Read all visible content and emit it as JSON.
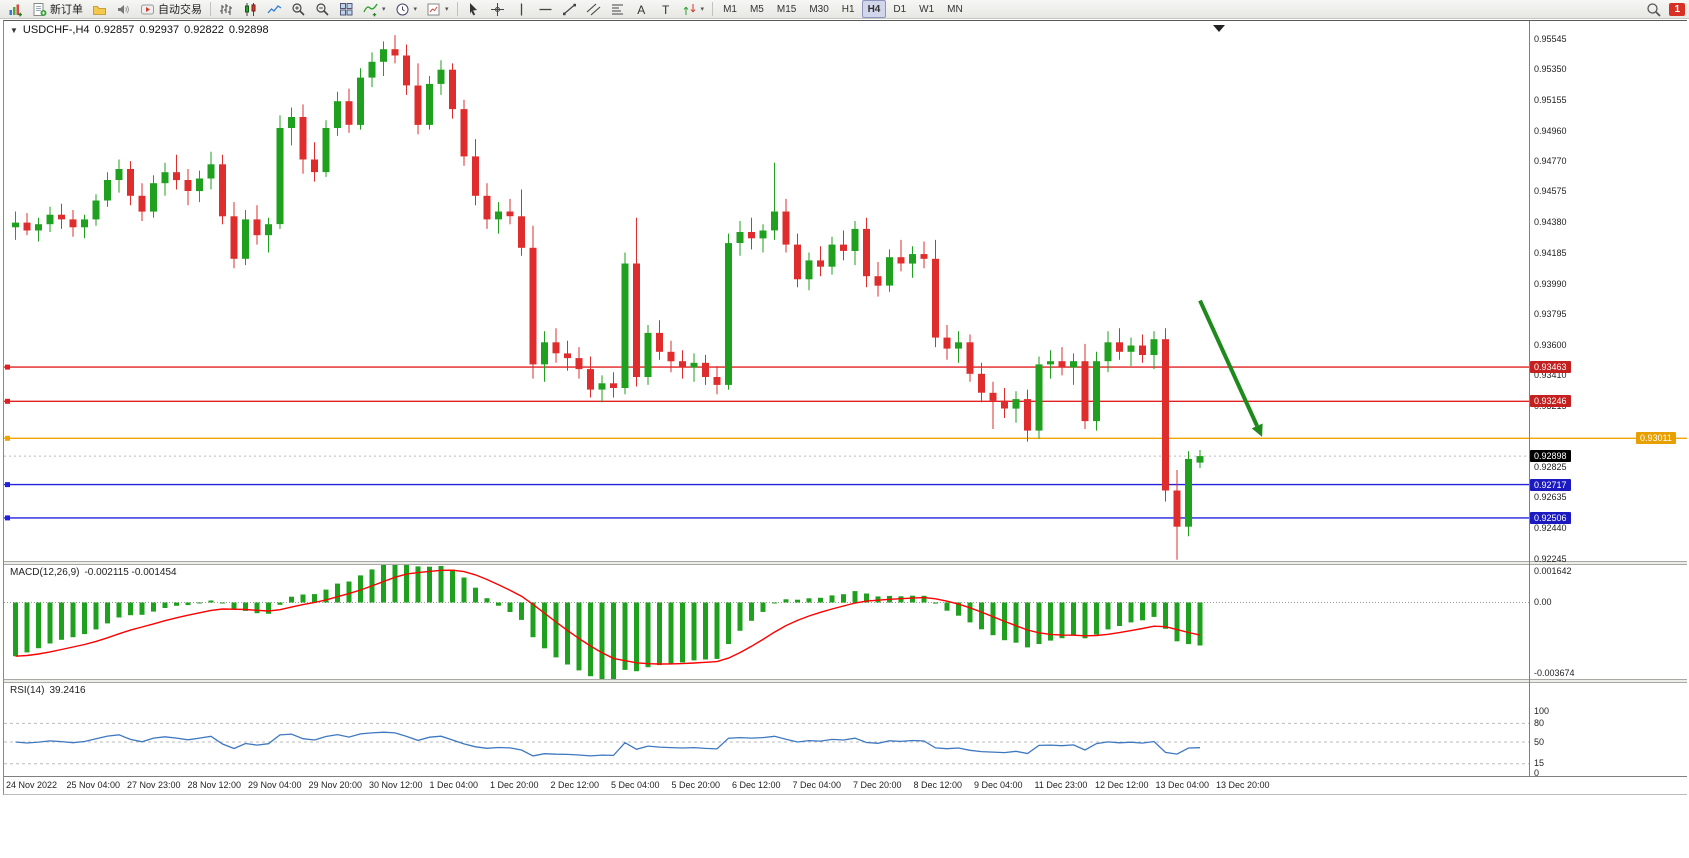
{
  "toolbar": {
    "file_group": [
      {
        "name": "new-chart-button",
        "icon": "chart-plus-icon"
      },
      {
        "name": "new-order-button",
        "icon": "new-order-icon",
        "label": "新订单"
      },
      {
        "name": "profiles-button",
        "icon": "profiles-icon"
      },
      {
        "name": "alerts-button",
        "icon": "alerts-icon"
      },
      {
        "name": "autotrade-button",
        "icon": "autotrade-icon",
        "label": "自动交易"
      }
    ],
    "chart_group": [
      {
        "name": "bar-chart-button",
        "icon": "bar-chart-icon"
      },
      {
        "name": "candlestick-button",
        "icon": "candle-chart-icon"
      },
      {
        "name": "line-chart-button",
        "icon": "line-chart-icon"
      },
      {
        "name": "zoom-in-button",
        "icon": "zoom-in-icon"
      },
      {
        "name": "zoom-out-button",
        "icon": "zoom-out-icon"
      },
      {
        "name": "tile-windows-button",
        "icon": "tile-windows-icon"
      },
      {
        "name": "indicators-button",
        "icon": "indicators-icon",
        "dropdown": true
      },
      {
        "name": "periods-button",
        "icon": "clock-icon",
        "dropdown": true
      },
      {
        "name": "templates-button",
        "icon": "templates-icon",
        "dropdown": true
      }
    ],
    "draw_group": [
      {
        "name": "cursor-button",
        "icon": "cursor-icon"
      },
      {
        "name": "crosshair-button",
        "icon": "crosshair-icon"
      },
      {
        "name": "vertical-line-button",
        "icon": "vertical-line-icon"
      },
      {
        "name": "horizontal-line-button",
        "icon": "horizontal-line-icon"
      },
      {
        "name": "trendline-button",
        "icon": "trendline-icon"
      },
      {
        "name": "channel-button",
        "icon": "channel-icon"
      },
      {
        "name": "fibonacci-button",
        "icon": "fibonacci-icon"
      },
      {
        "name": "text-button",
        "icon": "text-icon"
      },
      {
        "name": "text-label-button",
        "icon": "label-icon"
      },
      {
        "name": "arrows-button",
        "icon": "arrows-icon",
        "dropdown": true
      }
    ],
    "timeframes": [
      "M1",
      "M5",
      "M15",
      "M30",
      "H1",
      "H4",
      "D1",
      "W1",
      "MN"
    ],
    "active_timeframe": "H4",
    "right_group": [
      {
        "name": "search-button",
        "icon": "search-icon"
      }
    ],
    "notification_count": "1"
  },
  "chart": {
    "header": {
      "caret": "▼",
      "symbol_period": "USDCHF-,H4",
      "open": "0.92857",
      "high": "0.92937",
      "low": "0.92822",
      "close": "0.92898"
    }
  },
  "chart_data": {
    "type": "candlestick",
    "symbol": "USDCHF",
    "period": "H4",
    "price_range": {
      "max": 0.95545,
      "min": 0.92245
    },
    "price_axis_labels": [
      "0.95545",
      "0.95350",
      "0.95155",
      "0.94960",
      "0.94770",
      "0.94575",
      "0.94380",
      "0.94185",
      "0.93990",
      "0.93795",
      "0.93600",
      "0.93410",
      "0.93215",
      "0.92825",
      "0.92635",
      "0.92440",
      "0.92245"
    ],
    "candles": [
      [
        0.9435,
        0.9445,
        0.9427,
        0.9438
      ],
      [
        0.9438,
        0.9444,
        0.943,
        0.9433
      ],
      [
        0.9433,
        0.9441,
        0.9426,
        0.9437
      ],
      [
        0.9437,
        0.9448,
        0.9432,
        0.9443
      ],
      [
        0.9443,
        0.945,
        0.9434,
        0.944
      ],
      [
        0.944,
        0.9446,
        0.9429,
        0.9435
      ],
      [
        0.9435,
        0.9443,
        0.9428,
        0.944
      ],
      [
        0.944,
        0.9456,
        0.9436,
        0.9452
      ],
      [
        0.9452,
        0.947,
        0.9448,
        0.9465
      ],
      [
        0.9465,
        0.9478,
        0.9457,
        0.9472
      ],
      [
        0.9472,
        0.9477,
        0.9449,
        0.9455
      ],
      [
        0.9455,
        0.9463,
        0.9439,
        0.9445
      ],
      [
        0.9445,
        0.9468,
        0.9441,
        0.9463
      ],
      [
        0.9463,
        0.9476,
        0.9455,
        0.947
      ],
      [
        0.947,
        0.9481,
        0.9459,
        0.9465
      ],
      [
        0.9465,
        0.9472,
        0.9449,
        0.9458
      ],
      [
        0.9458,
        0.9471,
        0.9451,
        0.9466
      ],
      [
        0.9466,
        0.9483,
        0.9459,
        0.9475
      ],
      [
        0.9475,
        0.9481,
        0.9437,
        0.9442
      ],
      [
        0.9442,
        0.9451,
        0.9409,
        0.9415
      ],
      [
        0.9415,
        0.9446,
        0.9411,
        0.944
      ],
      [
        0.944,
        0.9449,
        0.9424,
        0.943
      ],
      [
        0.943,
        0.9441,
        0.9419,
        0.9437
      ],
      [
        0.9437,
        0.9506,
        0.9434,
        0.9498
      ],
      [
        0.9498,
        0.9511,
        0.9487,
        0.9505
      ],
      [
        0.9505,
        0.9513,
        0.9469,
        0.9478
      ],
      [
        0.9478,
        0.9489,
        0.9464,
        0.947
      ],
      [
        0.947,
        0.9503,
        0.9467,
        0.9498
      ],
      [
        0.9498,
        0.9521,
        0.9493,
        0.9515
      ],
      [
        0.9515,
        0.9523,
        0.9495,
        0.95
      ],
      [
        0.95,
        0.9536,
        0.9497,
        0.953
      ],
      [
        0.953,
        0.9546,
        0.9524,
        0.954
      ],
      [
        0.954,
        0.9553,
        0.9531,
        0.9548
      ],
      [
        0.9548,
        0.9557,
        0.9539,
        0.9544
      ],
      [
        0.9544,
        0.9551,
        0.9519,
        0.9525
      ],
      [
        0.9525,
        0.9539,
        0.9494,
        0.95
      ],
      [
        0.95,
        0.9531,
        0.9497,
        0.9526
      ],
      [
        0.9526,
        0.9541,
        0.9519,
        0.9535
      ],
      [
        0.9535,
        0.9539,
        0.9504,
        0.951
      ],
      [
        0.951,
        0.9516,
        0.9474,
        0.948
      ],
      [
        0.948,
        0.9491,
        0.9449,
        0.9455
      ],
      [
        0.9455,
        0.9463,
        0.9434,
        0.944
      ],
      [
        0.944,
        0.9451,
        0.9431,
        0.9445
      ],
      [
        0.9445,
        0.9453,
        0.9437,
        0.9442
      ],
      [
        0.9442,
        0.9459,
        0.9417,
        0.9422
      ],
      [
        0.9422,
        0.9436,
        0.9339,
        0.9348
      ],
      [
        0.9348,
        0.9369,
        0.9337,
        0.9362
      ],
      [
        0.9362,
        0.9371,
        0.9349,
        0.9355
      ],
      [
        0.9355,
        0.9363,
        0.9344,
        0.9352
      ],
      [
        0.9352,
        0.9359,
        0.9339,
        0.9345
      ],
      [
        0.9345,
        0.9353,
        0.9327,
        0.9332
      ],
      [
        0.9332,
        0.9341,
        0.9324,
        0.9336
      ],
      [
        0.9336,
        0.9343,
        0.9327,
        0.9333
      ],
      [
        0.9333,
        0.9419,
        0.9329,
        0.9412
      ],
      [
        0.9412,
        0.9441,
        0.9334,
        0.934
      ],
      [
        0.934,
        0.9373,
        0.9335,
        0.9368
      ],
      [
        0.9368,
        0.9376,
        0.9351,
        0.9356
      ],
      [
        0.9356,
        0.9363,
        0.9343,
        0.935
      ],
      [
        0.935,
        0.9357,
        0.9339,
        0.9346
      ],
      [
        0.9346,
        0.9355,
        0.9337,
        0.9349
      ],
      [
        0.9349,
        0.9354,
        0.9335,
        0.934
      ],
      [
        0.934,
        0.9347,
        0.9329,
        0.9335
      ],
      [
        0.9335,
        0.9431,
        0.9332,
        0.9425
      ],
      [
        0.9425,
        0.9439,
        0.9417,
        0.9432
      ],
      [
        0.9432,
        0.9441,
        0.9421,
        0.9428
      ],
      [
        0.9428,
        0.9437,
        0.9419,
        0.9433
      ],
      [
        0.9433,
        0.9476,
        0.9427,
        0.9445
      ],
      [
        0.9445,
        0.9453,
        0.9419,
        0.9424
      ],
      [
        0.9424,
        0.9431,
        0.9397,
        0.9402
      ],
      [
        0.9402,
        0.9419,
        0.9395,
        0.9414
      ],
      [
        0.9414,
        0.9423,
        0.9404,
        0.941
      ],
      [
        0.941,
        0.9429,
        0.9405,
        0.9424
      ],
      [
        0.9424,
        0.9433,
        0.9414,
        0.942
      ],
      [
        0.942,
        0.9439,
        0.9411,
        0.9434
      ],
      [
        0.9434,
        0.9441,
        0.9397,
        0.9404
      ],
      [
        0.9404,
        0.9413,
        0.9391,
        0.9398
      ],
      [
        0.9398,
        0.9421,
        0.9394,
        0.9416
      ],
      [
        0.9416,
        0.9427,
        0.9407,
        0.9412
      ],
      [
        0.9412,
        0.9423,
        0.9403,
        0.9418
      ],
      [
        0.9418,
        0.9426,
        0.9409,
        0.9415
      ],
      [
        0.9415,
        0.9427,
        0.9359,
        0.9365
      ],
      [
        0.9365,
        0.9373,
        0.9351,
        0.9358
      ],
      [
        0.9358,
        0.9369,
        0.9349,
        0.9362
      ],
      [
        0.9362,
        0.9367,
        0.9337,
        0.9342
      ],
      [
        0.9342,
        0.9349,
        0.9324,
        0.933
      ],
      [
        0.933,
        0.9337,
        0.9307,
        0.9325
      ],
      [
        0.9325,
        0.9333,
        0.9314,
        0.932
      ],
      [
        0.932,
        0.9331,
        0.9311,
        0.9326
      ],
      [
        0.9326,
        0.9332,
        0.9299,
        0.9306
      ],
      [
        0.9306,
        0.9353,
        0.9301,
        0.9348
      ],
      [
        0.9348,
        0.9357,
        0.9339,
        0.935
      ],
      [
        0.935,
        0.9359,
        0.9341,
        0.9346
      ],
      [
        0.9346,
        0.9355,
        0.9335,
        0.935
      ],
      [
        0.935,
        0.9361,
        0.9307,
        0.9312
      ],
      [
        0.9312,
        0.9356,
        0.9306,
        0.935
      ],
      [
        0.935,
        0.9369,
        0.9343,
        0.9362
      ],
      [
        0.9362,
        0.9371,
        0.9351,
        0.9356
      ],
      [
        0.9356,
        0.9365,
        0.9347,
        0.936
      ],
      [
        0.936,
        0.9367,
        0.9349,
        0.9354
      ],
      [
        0.9354,
        0.9369,
        0.9345,
        0.9364
      ],
      [
        0.9364,
        0.9371,
        0.9261,
        0.9268
      ],
      [
        0.9268,
        0.9281,
        0.9224,
        0.9245
      ],
      [
        0.9245,
        0.9293,
        0.9239,
        0.9288
      ],
      [
        0.92857,
        0.92937,
        0.92822,
        0.92898
      ]
    ],
    "levels": [
      {
        "price": 0.93463,
        "label": "0.93463",
        "color": "#e02020",
        "badge_bg": "#c42020",
        "extend_full": false
      },
      {
        "price": 0.93246,
        "label": "0.93246",
        "color": "#e02020",
        "badge_bg": "#c42020",
        "extend_full": false
      },
      {
        "price": 0.93011,
        "label": "0.93011",
        "color": "#f0a500",
        "badge_bg": "#e8a000",
        "extend_full": true,
        "badge_far_right": true
      },
      {
        "price": 0.92717,
        "label": "0.92717",
        "color": "#2222dd",
        "badge_bg": "#1a1ac0",
        "extend_full": false
      },
      {
        "price": 0.92506,
        "label": "0.92506",
        "color": "#2222dd",
        "badge_bg": "#1a1ac0",
        "extend_full": false
      }
    ],
    "current_price": {
      "value": 0.92898,
      "label": "0.92898",
      "badge_bg": "#000000"
    },
    "annotations": [
      {
        "type": "arrow",
        "name": "down-trend-arrow",
        "color": "#1e8a1e",
        "from": {
          "bar": 103,
          "price": 0.93885
        },
        "to": {
          "bar": 108.4,
          "price": 0.9302
        }
      }
    ],
    "indicators": {
      "macd": {
        "label": "MACD(12,26,9)",
        "current_values": "-0.002115 -0.001454",
        "params": {
          "fast": 12,
          "slow": 26,
          "signal": 9
        },
        "axis_labels": [
          {
            "v": 0.001642,
            "t": "0.001642"
          },
          {
            "v": 0,
            "t": "0.00"
          },
          {
            "v": -0.003674,
            "t": "-0.003674"
          }
        ],
        "max": 0.001642,
        "min": -0.003674
      },
      "rsi": {
        "label": "RSI(14)",
        "current_value": "39.2416",
        "period": 14,
        "axis_labels": [
          {
            "v": 100,
            "t": "100"
          },
          {
            "v": 80,
            "t": "80"
          },
          {
            "v": 50,
            "t": "50"
          },
          {
            "v": 15,
            "t": "15"
          },
          {
            "v": 0,
            "t": "0"
          }
        ],
        "level_lines": [
          80,
          50,
          15
        ]
      }
    },
    "time_axis_labels": [
      "24 Nov 2022",
      "25 Nov 04:00",
      "27 Nov 23:00",
      "28 Nov 12:00",
      "29 Nov 04:00",
      "29 Nov 20:00",
      "30 Nov 12:00",
      "1 Dec 04:00",
      "1 Dec 20:00",
      "2 Dec 12:00",
      "5 Dec 04:00",
      "5 Dec 20:00",
      "6 Dec 12:00",
      "7 Dec 04:00",
      "7 Dec 20:00",
      "8 Dec 12:00",
      "9 Dec 04:00",
      "11 Dec 23:00",
      "12 Dec 12:00",
      "13 Dec 04:00",
      "13 Dec 20:00"
    ],
    "colors": {
      "bull": "#1fa11f",
      "bear": "#df2d2d",
      "macd_hist": "#1fa11f",
      "macd_signal": "#ff0000",
      "rsi_line": "#3e78c0",
      "grid_label": "#222222",
      "axis_border": "#808080"
    }
  }
}
